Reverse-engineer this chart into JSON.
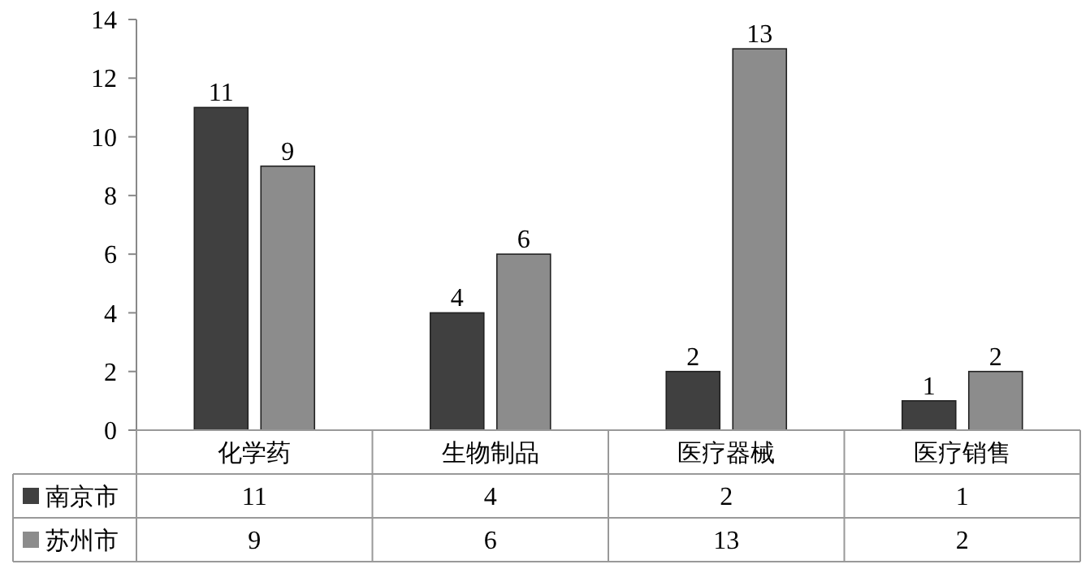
{
  "chart_data": {
    "type": "bar",
    "categories": [
      "化学药",
      "生物制品",
      "医疗器械",
      "医疗销售"
    ],
    "series": [
      {
        "name": "南京市",
        "color": "#404040",
        "values": [
          11,
          4,
          2,
          1
        ],
        "value_labels": [
          "11",
          "4",
          "2",
          "1"
        ]
      },
      {
        "name": "苏州市",
        "color": "#8c8c8c",
        "values": [
          9,
          6,
          13,
          2
        ],
        "value_labels": [
          "9",
          "6",
          "13",
          "2"
        ]
      }
    ],
    "ylim": [
      0,
      14
    ],
    "yticks": [
      0,
      2,
      4,
      6,
      8,
      10,
      12,
      14
    ],
    "annotations": [
      "11",
      "4",
      "2",
      "1",
      "9",
      "6",
      "13",
      "2"
    ],
    "grid": false,
    "legend": "bottom",
    "data_labels": true
  }
}
